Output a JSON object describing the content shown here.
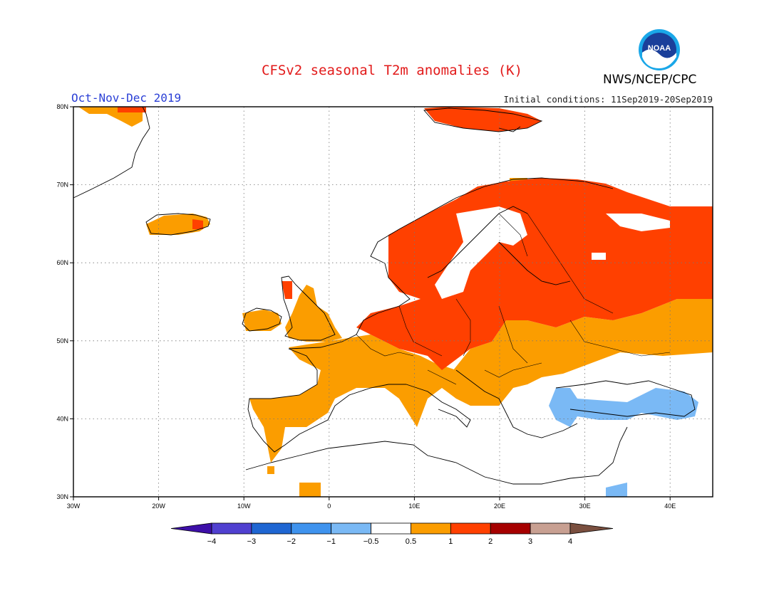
{
  "header": {
    "title": "CFSv2 seasonal T2m anomalies (K)",
    "agency": "NWS/NCEP/CPC",
    "logo_text": "NOAA",
    "period": "Oct-Nov-Dec 2019",
    "initial_conditions": "Initial conditions: 11Sep2019-20Sep2019"
  },
  "map": {
    "lon_range": [
      -30,
      45
    ],
    "lat_range": [
      30,
      80
    ],
    "lon_ticks": [
      {
        "value": -30,
        "label": "30W"
      },
      {
        "value": -20,
        "label": "20W"
      },
      {
        "value": -10,
        "label": "10W"
      },
      {
        "value": 0,
        "label": "0"
      },
      {
        "value": 10,
        "label": "10E"
      },
      {
        "value": 20,
        "label": "20E"
      },
      {
        "value": 30,
        "label": "30E"
      },
      {
        "value": 40,
        "label": "40E"
      }
    ],
    "lat_ticks": [
      {
        "value": 30,
        "label": "30N"
      },
      {
        "value": 40,
        "label": "40N"
      },
      {
        "value": 50,
        "label": "50N"
      },
      {
        "value": 60,
        "label": "60N"
      },
      {
        "value": 70,
        "label": "70N"
      },
      {
        "value": 80,
        "label": "80N"
      }
    ]
  },
  "colorbar": {
    "colors": [
      "#3d0fa8",
      "#5040d0",
      "#1f66d2",
      "#3f93ee",
      "#7ab9f5",
      "#ffffff",
      "#fb9d00",
      "#ff4000",
      "#a60000",
      "#c8a092",
      "#7a4f3f"
    ],
    "labels": [
      "−4",
      "−3",
      "−2",
      "−1",
      "−0.5",
      "0.5",
      "1",
      "2",
      "3",
      "4"
    ]
  },
  "anomaly_regions": [
    {
      "level": "1 to 2",
      "color": "#ff4000",
      "area": "Scandinavia, Finland, western Russia, Baltic states, Poland, Germany, Czechia, Svalbard"
    },
    {
      "level": "0.5 to 1",
      "color": "#fb9d00",
      "area": "Iceland, British Isles, France, Iberia, Italy, Balkans, Ukraine, southern Russia"
    },
    {
      "level": "-1 to -0.5",
      "color": "#7ab9f5",
      "area": "Black Sea, Turkey coast, eastern Mediterranean"
    }
  ]
}
